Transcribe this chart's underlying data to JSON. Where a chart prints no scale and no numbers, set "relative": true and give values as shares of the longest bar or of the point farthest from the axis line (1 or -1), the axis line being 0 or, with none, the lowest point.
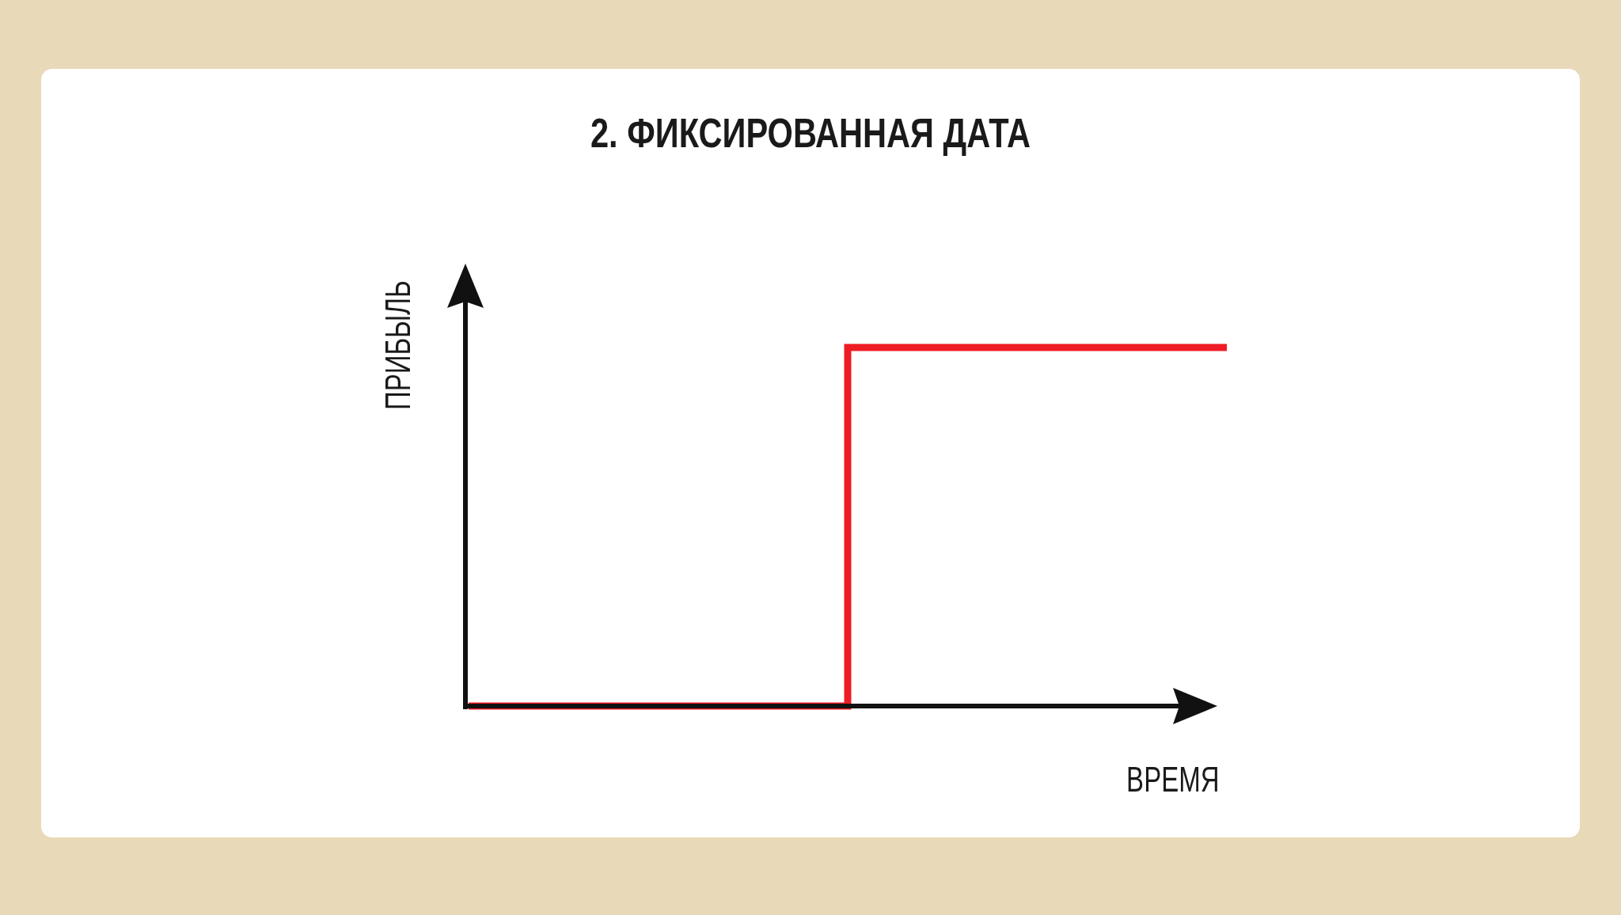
{
  "chart_data": {
    "type": "step",
    "title": "2. ФИКСИРОВАННАЯ ДАТА",
    "xlabel": "ВРЕМЯ",
    "ylabel": "ПРИБЫЛЬ",
    "categories": [
      null,
      null,
      null
    ],
    "values": [
      0,
      1,
      1
    ],
    "color": "#ee1c25",
    "relative": true
  }
}
